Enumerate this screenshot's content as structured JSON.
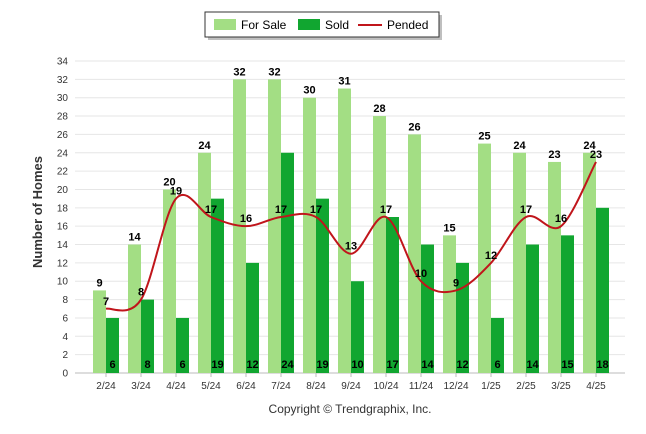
{
  "chart_data": {
    "type": "bar",
    "categories": [
      "2/24",
      "3/24",
      "4/24",
      "5/24",
      "6/24",
      "7/24",
      "8/24",
      "9/24",
      "10/24",
      "11/24",
      "12/24",
      "1/25",
      "2/25",
      "3/25",
      "4/25"
    ],
    "series": [
      {
        "name": "For Sale",
        "type": "bar",
        "color": "#a3de84",
        "values": [
          9,
          14,
          20,
          24,
          32,
          32,
          30,
          31,
          28,
          26,
          15,
          25,
          24,
          23,
          24
        ]
      },
      {
        "name": "Sold",
        "type": "bar",
        "color": "#11a630",
        "values": [
          6,
          8,
          6,
          19,
          12,
          24,
          19,
          10,
          17,
          14,
          12,
          6,
          14,
          15,
          18
        ]
      },
      {
        "name": "Pended",
        "type": "line",
        "color": "#c0151b",
        "values": [
          7,
          8,
          19,
          17,
          16,
          17,
          17,
          13,
          17,
          10,
          9,
          12,
          17,
          16,
          23
        ]
      }
    ],
    "ylabel": "Number of Homes",
    "xlabel": "",
    "ylim": [
      0,
      34
    ],
    "yticks": [
      0,
      2,
      4,
      6,
      8,
      10,
      12,
      14,
      16,
      18,
      20,
      22,
      24,
      26,
      28,
      30,
      32,
      34
    ],
    "grid": true,
    "legend": "top-center"
  },
  "credit": "Copyright © Trendgraphix, Inc."
}
